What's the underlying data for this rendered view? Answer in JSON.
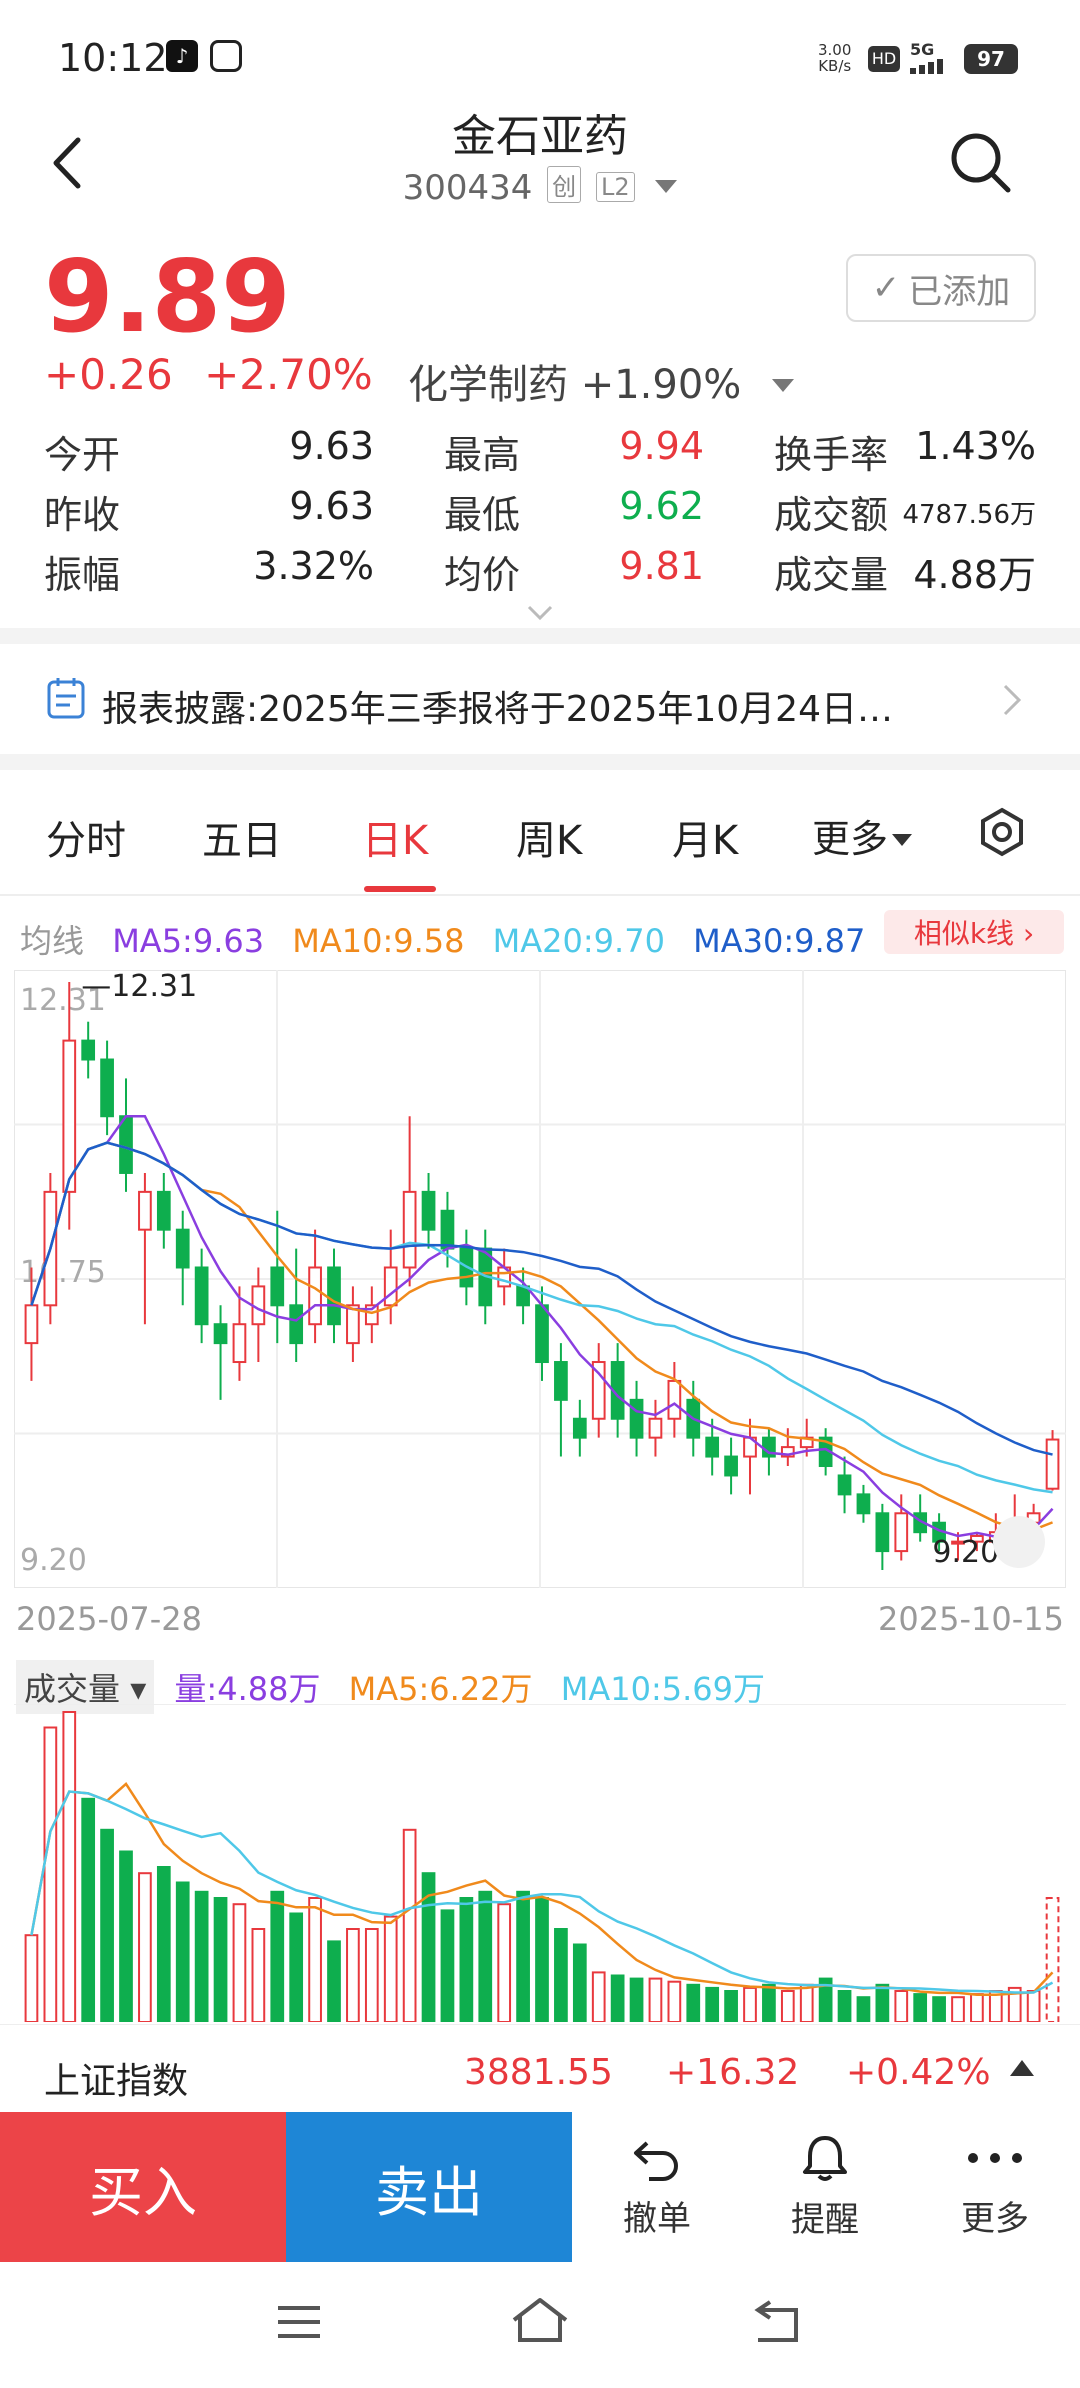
{
  "status": {
    "time": "10:12",
    "net_speed": "3.00\nKB/s",
    "hd": "HD",
    "signal": "5G",
    "battery": "97"
  },
  "header": {
    "title": "金石亚药",
    "code": "300434",
    "tag1": "创",
    "tag2": "L2"
  },
  "quote": {
    "price": "9.89",
    "change": "+0.26",
    "change_pct": "+2.70%",
    "sector": "化学制药 +1.90%",
    "added_label": "已添加"
  },
  "stats": [
    {
      "label": "今开",
      "value": "9.63",
      "color": "#222"
    },
    {
      "label": "最高",
      "value": "9.94",
      "color": "#e8383d"
    },
    {
      "label": "换手率",
      "value": "1.43%",
      "color": "#222"
    },
    {
      "label": "昨收",
      "value": "9.63",
      "color": "#222"
    },
    {
      "label": "最低",
      "value": "9.62",
      "color": "#0eae4e"
    },
    {
      "label": "成交额",
      "value": "4787.56万",
      "color": "#222"
    },
    {
      "label": "振幅",
      "value": "3.32%",
      "color": "#222"
    },
    {
      "label": "均价",
      "value": "9.81",
      "color": "#e8383d"
    },
    {
      "label": "成交量",
      "value": "4.88万",
      "color": "#222"
    }
  ],
  "notice": {
    "text": "报表披露:2025年三季报将于2025年10月24日…"
  },
  "tabs": [
    "分时",
    "五日",
    "日K",
    "周K",
    "月K",
    "更多"
  ],
  "ma": {
    "label": "均线",
    "ma5": "MA5:9.63",
    "ma10": "MA10:9.58",
    "ma20": "MA20:9.70",
    "ma30": "MA30:9.87",
    "similar": "相似k线 ›"
  },
  "chart_labels": {
    "y_top": "12.31",
    "y_mid": "10.75",
    "y_bottom": "9.20",
    "high_marker": "12.31",
    "low_marker": "9.20",
    "date_start": "2025-07-28",
    "date_end": "2025-10-15"
  },
  "volume": {
    "dropdown": "成交量",
    "vol": "量:4.88万",
    "ma5": "MA5:6.22万",
    "ma10": "MA10:5.69万"
  },
  "index": {
    "name": "上证指数",
    "value": "3881.55",
    "change": "+16.32",
    "pct": "+0.42%"
  },
  "bottom": {
    "buy": "买入",
    "sell": "卖出",
    "cancel": "撤单",
    "alert": "提醒",
    "more": "更多"
  },
  "colors": {
    "up": "#e8383d",
    "down": "#0eae4e",
    "ma5": "#8a3ee0",
    "ma10": "#f08a1c",
    "ma20": "#4fc8e8",
    "ma30": "#1f5ec9",
    "buy": "#ec4448",
    "sell": "#1e86d6"
  },
  "chart_data": {
    "type": "candlestick",
    "ylim": [
      9.2,
      12.31
    ],
    "x_range": [
      "2025-07-28",
      "2025-10-15"
    ],
    "candles": [
      [
        10.4,
        10.6,
        10.8,
        10.2
      ],
      [
        10.6,
        11.2,
        11.3,
        10.5
      ],
      [
        11.2,
        12.0,
        12.31,
        11.0
      ],
      [
        12.0,
        11.9,
        12.1,
        11.8
      ],
      [
        11.9,
        11.6,
        12.0,
        11.5
      ],
      [
        11.6,
        11.3,
        11.8,
        11.2
      ],
      [
        11.0,
        11.2,
        11.3,
        10.5
      ],
      [
        11.2,
        11.0,
        11.3,
        10.9
      ],
      [
        11.0,
        10.8,
        11.1,
        10.6
      ],
      [
        10.8,
        10.5,
        10.9,
        10.4
      ],
      [
        10.5,
        10.4,
        10.6,
        10.1
      ],
      [
        10.3,
        10.5,
        10.7,
        10.2
      ],
      [
        10.5,
        10.7,
        10.8,
        10.3
      ],
      [
        10.8,
        10.6,
        11.1,
        10.4
      ],
      [
        10.6,
        10.4,
        10.9,
        10.3
      ],
      [
        10.5,
        10.8,
        11.0,
        10.4
      ],
      [
        10.8,
        10.5,
        10.9,
        10.4
      ],
      [
        10.4,
        10.6,
        10.7,
        10.3
      ],
      [
        10.5,
        10.6,
        10.7,
        10.4
      ],
      [
        10.6,
        10.8,
        11.0,
        10.5
      ],
      [
        10.8,
        11.2,
        11.6,
        10.7
      ],
      [
        11.2,
        11.0,
        11.3,
        10.9
      ],
      [
        11.1,
        10.9,
        11.2,
        10.8
      ],
      [
        10.9,
        10.7,
        11.0,
        10.6
      ],
      [
        10.9,
        10.6,
        11.0,
        10.5
      ],
      [
        10.7,
        10.8,
        10.9,
        10.6
      ],
      [
        10.7,
        10.6,
        10.8,
        10.5
      ],
      [
        10.6,
        10.3,
        10.7,
        10.2
      ],
      [
        10.3,
        10.1,
        10.4,
        9.8
      ],
      [
        10.0,
        9.9,
        10.1,
        9.8
      ],
      [
        10.0,
        10.3,
        10.4,
        9.9
      ],
      [
        10.3,
        10.0,
        10.4,
        9.9
      ],
      [
        10.1,
        9.9,
        10.2,
        9.8
      ],
      [
        9.9,
        10.0,
        10.1,
        9.8
      ],
      [
        10.0,
        10.2,
        10.3,
        9.9
      ],
      [
        10.1,
        9.9,
        10.2,
        9.8
      ],
      [
        9.9,
        9.8,
        10.0,
        9.7
      ],
      [
        9.8,
        9.7,
        9.9,
        9.6
      ],
      [
        9.8,
        9.9,
        10.0,
        9.6
      ],
      [
        9.9,
        9.8,
        9.95,
        9.7
      ],
      [
        9.8,
        9.85,
        9.95,
        9.75
      ],
      [
        9.85,
        9.9,
        10.0,
        9.8
      ],
      [
        9.9,
        9.75,
        9.95,
        9.7
      ],
      [
        9.7,
        9.6,
        9.8,
        9.5
      ],
      [
        9.6,
        9.5,
        9.65,
        9.45
      ],
      [
        9.5,
        9.3,
        9.55,
        9.2
      ],
      [
        9.3,
        9.5,
        9.6,
        9.25
      ],
      [
        9.5,
        9.4,
        9.6,
        9.35
      ],
      [
        9.45,
        9.35,
        9.5,
        9.3
      ],
      [
        9.35,
        9.35,
        9.4,
        9.25
      ],
      [
        9.35,
        9.38,
        9.4,
        9.3
      ],
      [
        9.35,
        9.4,
        9.5,
        9.3
      ],
      [
        9.4,
        9.45,
        9.6,
        9.35
      ],
      [
        9.45,
        9.5,
        9.55,
        9.4
      ],
      [
        9.63,
        9.89,
        9.94,
        9.62
      ]
    ]
  }
}
